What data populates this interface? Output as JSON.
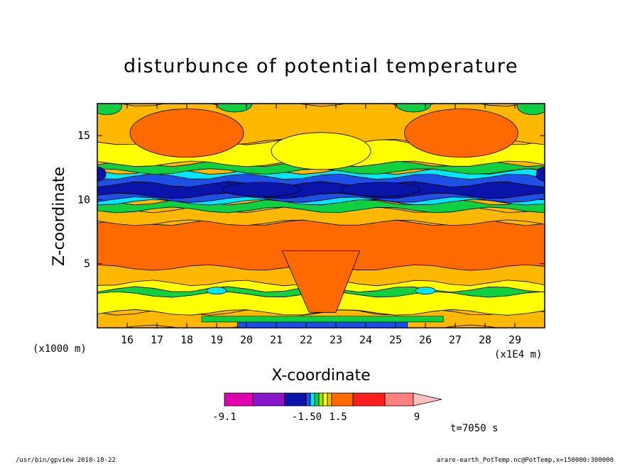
{
  "chart_data": {
    "type": "heatmap",
    "title": "disturbunce of potential temperature",
    "xlabel": "X-coordinate",
    "ylabel": "Z-coordinate",
    "x_unit_label": "(x1E4 m)",
    "y_unit_label": "(x1000 m)",
    "xlim": [
      15,
      30
    ],
    "ylim": [
      0,
      17.5
    ],
    "x_ticks": [
      "16",
      "17",
      "18",
      "19",
      "20",
      "21",
      "22",
      "23",
      "24",
      "25",
      "26",
      "27",
      "28",
      "29"
    ],
    "x_tick_values": [
      16,
      17,
      18,
      19,
      20,
      21,
      22,
      23,
      24,
      25,
      26,
      27,
      28,
      29
    ],
    "y_ticks": [
      "5",
      "10",
      "15"
    ],
    "y_tick_values": [
      5,
      10,
      15
    ],
    "colorbar": {
      "labels": [
        "-9.1",
        "-1.50",
        "1.5",
        "9"
      ],
      "colors": [
        "#e000b0",
        "#8a14c8",
        "#0a14a8",
        "#1e50e6",
        "#00e6ff",
        "#10d040",
        "#a0e000",
        "#ffff00",
        "#ffb800",
        "#ff6a00",
        "#ff1e1e",
        "#ff8080",
        "#ffc0c0"
      ]
    },
    "time_label": "t=7050 s",
    "contours": [
      {
        "name": "band-bottom",
        "color": "#ffb800",
        "z_bottom": 0,
        "z_top": 1.2
      },
      {
        "name": "band-low-yellow",
        "color": "#ffff00",
        "z_bottom": 1.2,
        "z_top": 3.5
      },
      {
        "name": "band-low-green",
        "color": "#10d040",
        "z_bottom": 2.6,
        "z_top": 3.0
      },
      {
        "name": "band-mid-orange",
        "color": "#ff6a00",
        "z_bottom": 4.7,
        "z_top": 8.2
      },
      {
        "name": "band-mid-yellow",
        "color": "#ffb800",
        "z_bottom": 8.2,
        "z_top": 9.2
      },
      {
        "name": "band-green",
        "color": "#10d040",
        "z_bottom": 9.2,
        "z_top": 9.8
      },
      {
        "name": "band-cyan",
        "color": "#00e6ff",
        "z_bottom": 9.8,
        "z_top": 12.2
      },
      {
        "name": "band-blue",
        "color": "#1e50e6",
        "z_bottom": 10.0,
        "z_top": 11.8
      },
      {
        "name": "band-dark-blue",
        "color": "#0a14a8",
        "z_bottom": 10.3,
        "z_top": 11.2
      },
      {
        "name": "band-upper-green",
        "color": "#10d040",
        "z_bottom": 12.2,
        "z_top": 12.8
      },
      {
        "name": "band-upper-yellow",
        "color": "#ffff00",
        "z_bottom": 12.8,
        "z_top": 14.5
      },
      {
        "name": "band-upper-orange",
        "color": "#ffb800",
        "z_bottom": 14.5,
        "z_top": 17.5
      }
    ]
  },
  "footer": {
    "left": "/usr/bin/gpview  2010-10-22",
    "right": "arare-earth_PotTemp.nc@PotTemp,x=150000:300000"
  }
}
